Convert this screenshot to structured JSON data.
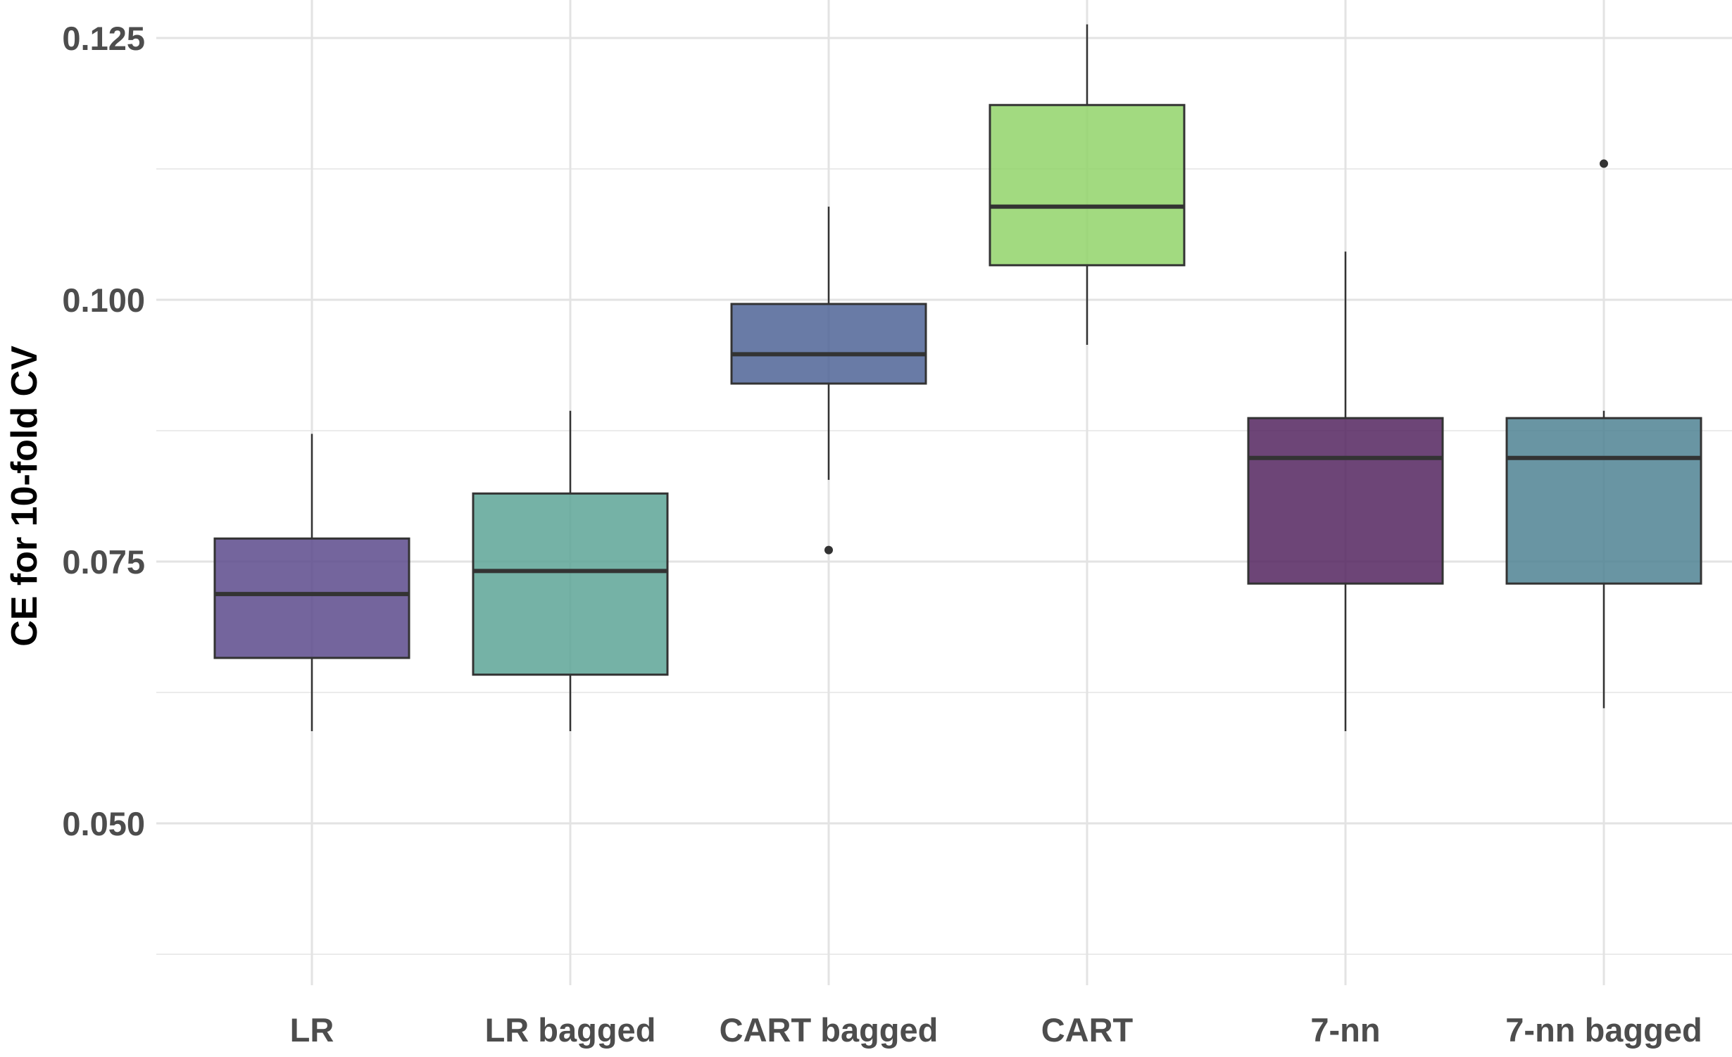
{
  "chart_data": {
    "type": "boxplot",
    "title": "",
    "xlabel": "",
    "ylabel": "CE for 10-fold CV",
    "ylim": [
      0.0375,
      0.1265
    ],
    "y_ticks": [
      0.05,
      0.075,
      0.1,
      0.125
    ],
    "y_tick_labels": [
      "0.050",
      "0.075",
      "0.100",
      "0.125"
    ],
    "grid": true,
    "legend": "none",
    "categories": [
      "LR",
      "LR bagged",
      "CART bagged",
      "CART",
      "7-nn",
      "7-nn bagged"
    ],
    "boxes": [
      {
        "category": "LR",
        "whisker_low": 0.0588,
        "q1": 0.0658,
        "median": 0.0719,
        "q3": 0.0772,
        "whisker_high": 0.0872,
        "outliers": [],
        "color": "#5c4a8c"
      },
      {
        "category": "LR bagged",
        "whisker_low": 0.0588,
        "q1": 0.0642,
        "median": 0.0741,
        "q3": 0.0815,
        "whisker_high": 0.0894,
        "outliers": [],
        "color": "#5da597"
      },
      {
        "category": "CART bagged",
        "whisker_low": 0.0828,
        "q1": 0.092,
        "median": 0.0948,
        "q3": 0.0996,
        "whisker_high": 0.1089,
        "outliers": [
          0.0761
        ],
        "color": "#4f6496"
      },
      {
        "category": "CART",
        "whisker_low": 0.0957,
        "q1": 0.1033,
        "median": 0.1089,
        "q3": 0.1186,
        "whisker_high": 0.1263,
        "outliers": [],
        "color": "#92d46a"
      },
      {
        "category": "7-nn",
        "whisker_low": 0.0588,
        "q1": 0.0729,
        "median": 0.0849,
        "q3": 0.0887,
        "whisker_high": 0.1046,
        "outliers": [],
        "color": "#54255f"
      },
      {
        "category": "7-nn bagged",
        "whisker_low": 0.061,
        "q1": 0.0729,
        "median": 0.0849,
        "q3": 0.0887,
        "whisker_high": 0.0894,
        "outliers": [
          0.113
        ],
        "color": "#4f8393"
      }
    ]
  }
}
